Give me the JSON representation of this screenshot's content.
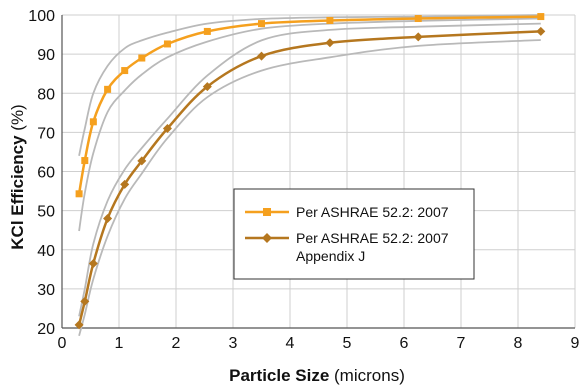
{
  "chart_data": {
    "type": "line",
    "xlabel_bold": "Particle Size",
    "xlabel_unit": " (microns)",
    "ylabel_bold": "KCl Efficiency",
    "ylabel_unit": " (%)",
    "xlim": [
      0,
      9
    ],
    "ylim": [
      20,
      100
    ],
    "x_ticks": [
      "0",
      "1",
      "2",
      "3",
      "4",
      "5",
      "6",
      "7",
      "8",
      "9"
    ],
    "y_ticks": [
      "20",
      "30",
      "40",
      "50",
      "60",
      "70",
      "80",
      "90",
      "100"
    ],
    "grid": {
      "horizontal": true,
      "vertical": true
    },
    "legend_position": "center-right",
    "series": [
      {
        "name": "Per ASHRAE 52.2: 2007",
        "color": "#f5a01e",
        "marker": "square",
        "points": [
          [
            0.3,
            54.3
          ],
          [
            0.4,
            62.8
          ],
          [
            0.55,
            72.7
          ],
          [
            0.8,
            81
          ],
          [
            1.1,
            85.8
          ],
          [
            1.4,
            89
          ],
          [
            1.85,
            92.6
          ],
          [
            2.55,
            95.8
          ],
          [
            3.5,
            97.8
          ],
          [
            4.7,
            98.6
          ],
          [
            6.25,
            99.1
          ],
          [
            8.4,
            99.6
          ]
        ],
        "bounds": [
          [
            [
              0.3,
              64
            ],
            [
              0.4,
              71
            ],
            [
              0.55,
              80
            ],
            [
              0.8,
              87
            ],
            [
              1.1,
              91.5
            ],
            [
              1.4,
              93.5
            ],
            [
              1.85,
              95.5
            ],
            [
              2.55,
              97.8
            ],
            [
              3.5,
              99
            ],
            [
              4.7,
              99.4
            ],
            [
              6.25,
              99.6
            ],
            [
              8.4,
              100
            ]
          ],
          [
            [
              0.3,
              44.8
            ],
            [
              0.4,
              54.5
            ],
            [
              0.55,
              64.7
            ],
            [
              0.8,
              75.2
            ],
            [
              1.1,
              80.7
            ],
            [
              1.4,
              84.8
            ],
            [
              1.85,
              89.2
            ],
            [
              2.55,
              93.2
            ],
            [
              3.5,
              96.5
            ],
            [
              4.7,
              97.8
            ],
            [
              6.25,
              98.5
            ],
            [
              8.4,
              99.1
            ]
          ]
        ]
      },
      {
        "name": "Per ASHRAE 52.2: 2007",
        "name_line2": "Appendix J",
        "color": "#b5771f",
        "marker": "diamond",
        "points": [
          [
            0.3,
            20.8
          ],
          [
            0.4,
            26.8
          ],
          [
            0.55,
            36.5
          ],
          [
            0.8,
            48
          ],
          [
            1.1,
            56.7
          ],
          [
            1.4,
            62.7
          ],
          [
            1.85,
            71
          ],
          [
            2.55,
            81.7
          ],
          [
            3.5,
            89.5
          ],
          [
            4.7,
            92.9
          ],
          [
            6.25,
            94.4
          ],
          [
            8.4,
            95.8
          ]
        ],
        "bounds": [
          [
            [
              0.3,
              23
            ],
            [
              0.4,
              30
            ],
            [
              0.55,
              41.5
            ],
            [
              0.8,
              52.5
            ],
            [
              1.1,
              60.5
            ],
            [
              1.4,
              66
            ],
            [
              1.85,
              73.5
            ],
            [
              2.55,
              84.5
            ],
            [
              3.5,
              93.5
            ],
            [
              4.7,
              96.2
            ],
            [
              6.25,
              97
            ],
            [
              8.4,
              97.8
            ]
          ],
          [
            [
              0.3,
              18
            ],
            [
              0.4,
              23.5
            ],
            [
              0.55,
              32.5
            ],
            [
              0.8,
              43.5
            ],
            [
              1.1,
              53
            ],
            [
              1.4,
              59.5
            ],
            [
              1.85,
              68.5
            ],
            [
              2.55,
              79
            ],
            [
              3.5,
              85.8
            ],
            [
              4.7,
              89.2
            ],
            [
              6.25,
              92.1
            ],
            [
              8.4,
              93.6
            ]
          ]
        ]
      }
    ]
  }
}
